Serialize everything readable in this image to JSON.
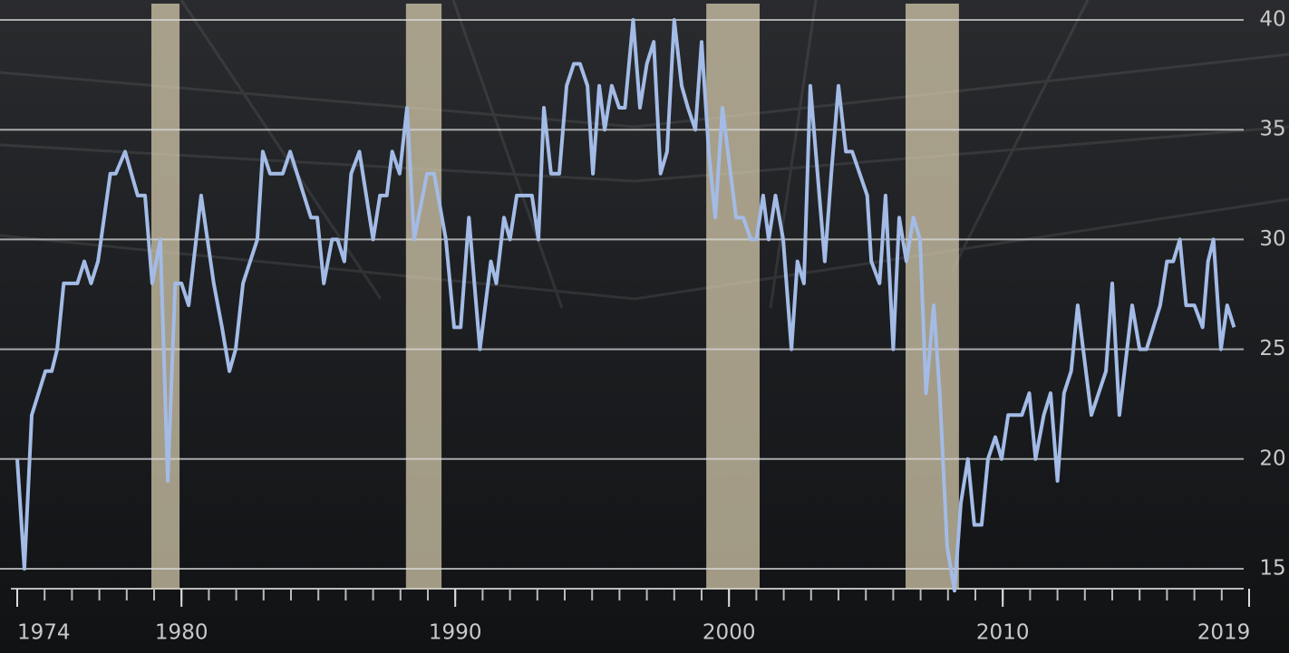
{
  "chart_data": {
    "type": "line",
    "x": [
      1974.0,
      1974.26,
      1974.53,
      1975.03,
      1975.26,
      1975.46,
      1975.7,
      1976.2,
      1976.45,
      1976.7,
      1976.95,
      1977.4,
      1977.6,
      1977.94,
      1978.4,
      1978.67,
      1978.93,
      1979.23,
      1979.5,
      1979.77,
      1980.0,
      1980.26,
      1980.72,
      1981.18,
      1981.48,
      1981.75,
      1981.98,
      1982.25,
      1982.77,
      1982.97,
      1983.24,
      1983.7,
      1983.97,
      1984.73,
      1984.96,
      1985.2,
      1985.5,
      1985.7,
      1985.95,
      1986.2,
      1986.5,
      1987.0,
      1987.25,
      1987.5,
      1987.7,
      1987.97,
      1988.24,
      1988.5,
      1988.97,
      1989.23,
      1989.66,
      1989.96,
      1990.2,
      1990.5,
      1990.9,
      1991.3,
      1991.5,
      1991.78,
      1992.0,
      1992.25,
      1992.8,
      1993.04,
      1993.24,
      1993.5,
      1993.8,
      1994.07,
      1994.33,
      1994.56,
      1994.83,
      1995.03,
      1995.26,
      1995.46,
      1995.72,
      1995.99,
      1996.2,
      1996.5,
      1996.75,
      1997.0,
      1997.25,
      1997.5,
      1997.74,
      1998.0,
      1998.27,
      1998.5,
      1998.77,
      1999.0,
      1999.26,
      1999.5,
      1999.76,
      2000.06,
      2000.26,
      2000.52,
      2000.8,
      2001.0,
      2001.25,
      2001.45,
      2001.7,
      2001.98,
      2002.28,
      2002.5,
      2002.74,
      2002.97,
      2003.5,
      2003.74,
      2004.0,
      2004.27,
      2004.5,
      2005.05,
      2005.2,
      2005.5,
      2005.72,
      2006.0,
      2006.22,
      2006.48,
      2006.74,
      2006.98,
      2007.2,
      2007.48,
      2007.7,
      2007.97,
      2008.24,
      2008.47,
      2008.73,
      2008.96,
      2009.23,
      2009.46,
      2009.73,
      2009.96,
      2010.2,
      2010.7,
      2010.97,
      2011.2,
      2011.5,
      2011.75,
      2012.0,
      2012.24,
      2012.5,
      2012.74,
      2013.24,
      2013.77,
      2014.0,
      2014.26,
      2014.73,
      2015.0,
      2015.25,
      2015.75,
      2016.0,
      2016.23,
      2016.47,
      2016.7,
      2017.0,
      2017.3,
      2017.5,
      2017.7,
      2017.97,
      2018.2,
      2018.45
    ],
    "values": [
      20,
      15,
      22,
      24,
      24,
      25,
      28,
      28,
      29,
      28,
      29,
      33,
      33,
      34,
      32,
      32,
      28,
      30,
      19,
      28,
      28,
      27,
      32,
      28,
      26,
      24,
      25,
      28,
      30,
      34,
      33,
      33,
      34,
      31,
      31,
      28,
      30,
      30,
      29,
      33,
      34,
      30,
      32,
      32,
      34,
      33,
      36,
      30,
      33,
      33,
      30,
      26,
      26,
      31,
      25,
      29,
      28,
      31,
      30,
      32,
      32,
      30,
      36,
      33,
      33,
      37,
      38,
      38,
      37,
      33,
      37,
      35,
      37,
      36,
      36,
      40,
      36,
      38,
      39,
      33,
      34,
      40,
      37,
      36,
      35,
      39,
      34,
      31,
      36,
      33,
      31,
      31,
      30,
      30,
      32,
      30,
      32,
      30,
      25,
      29,
      28,
      37,
      29,
      33,
      37,
      34,
      34,
      32,
      29,
      28,
      32,
      25,
      31,
      29,
      31,
      30,
      23,
      27,
      23,
      16,
      14,
      18,
      20,
      17,
      17,
      20,
      21,
      20,
      22,
      22,
      23,
      20,
      22,
      23,
      19,
      23,
      24,
      27,
      22,
      24,
      28,
      22,
      27,
      25,
      25,
      27,
      29,
      29,
      30,
      27,
      27,
      26,
      29,
      30,
      25,
      27,
      26
    ],
    "color": "#a3bbe6",
    "shaded_regions": [
      {
        "start": 1978.9,
        "end": 1979.93
      },
      {
        "start": 1988.2,
        "end": 1989.5
      },
      {
        "start": 1999.17,
        "end": 2001.12
      },
      {
        "start": 2006.45,
        "end": 2008.4
      }
    ],
    "shade_color": "#d9ceb0",
    "xlim": [
      1974,
      2019
    ],
    "xticks": [
      1974,
      1980,
      1990,
      2000,
      2010,
      2019
    ],
    "xminorticks": [
      1974,
      1975,
      1976,
      1977,
      1978,
      1979,
      1980,
      1981,
      1982,
      1983,
      1984,
      1985,
      1986,
      1987,
      1988,
      1989,
      1990,
      1991,
      1992,
      1993,
      1994,
      1995,
      1996,
      1997,
      1998,
      1999,
      2000,
      2001,
      2002,
      2003,
      2004,
      2005,
      2006,
      2007,
      2008,
      2009,
      2010,
      2011,
      2012,
      2013,
      2014,
      2015,
      2016,
      2017,
      2018,
      2019
    ],
    "ylim": [
      15,
      40
    ],
    "yticks": [
      15,
      20,
      25,
      30,
      35,
      40
    ],
    "grid": true
  }
}
